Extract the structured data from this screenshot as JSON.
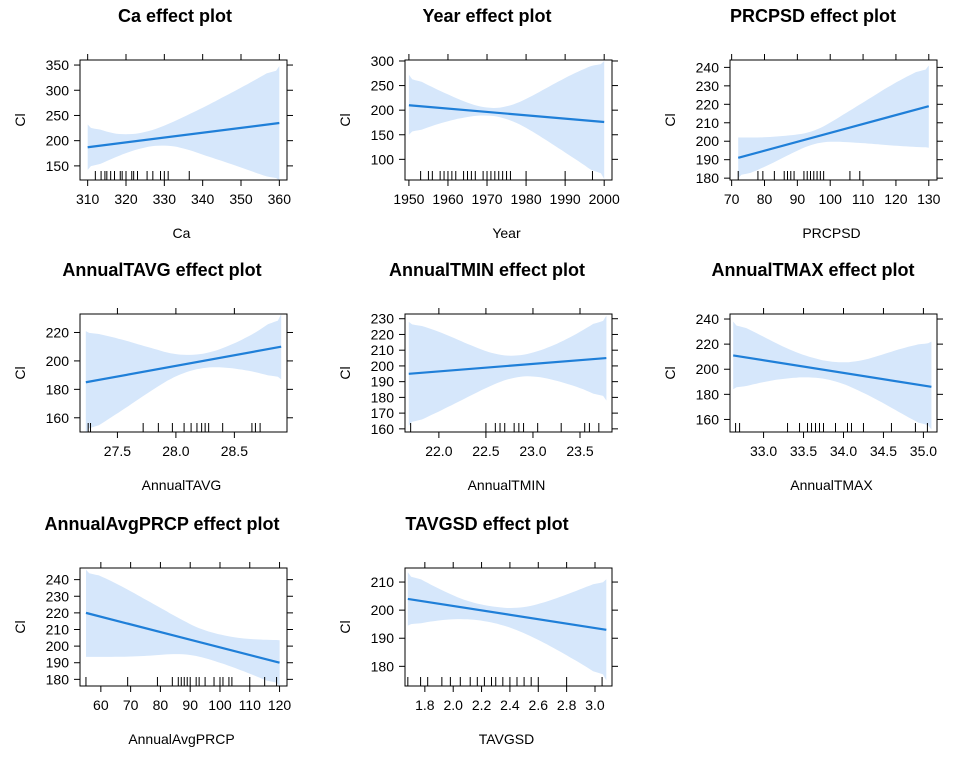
{
  "chart_data": [
    {
      "type": "line",
      "title": "Ca effect plot",
      "xlabel": "Ca",
      "ylabel": "Cl",
      "xlim": [
        308,
        362
      ],
      "ylim": [
        122,
        360
      ],
      "xticks": [
        310,
        320,
        330,
        340,
        350,
        360
      ],
      "yticks": [
        150,
        200,
        250,
        300,
        350
      ],
      "xtick_labels": [
        "310",
        "320",
        "330",
        "340",
        "350",
        "360"
      ],
      "ytick_labels": [
        "150",
        "200",
        "250",
        "300",
        "350"
      ],
      "fit": {
        "x": [
          310,
          360
        ],
        "y": [
          187,
          235
        ]
      },
      "band_upper": {
        "x": [
          310,
          315,
          320,
          325,
          330,
          335,
          340,
          345,
          350,
          355,
          360
        ],
        "y": [
          232,
          216,
          211,
          216,
          229,
          247,
          265,
          285,
          305,
          326,
          348
        ]
      },
      "band_lower": {
        "x": [
          310,
          315,
          320,
          325,
          330,
          335,
          340,
          345,
          350,
          355,
          360
        ],
        "y": [
          142,
          160,
          176,
          188,
          192,
          186,
          172,
          160,
          147,
          133,
          121
        ]
      },
      "rug": [
        312,
        313.5,
        314.5,
        315,
        316,
        317,
        318.5,
        319,
        320,
        321.5,
        322,
        323,
        325.5,
        327,
        329,
        330,
        331,
        336.5
      ]
    },
    {
      "type": "line",
      "title": "Year effect plot",
      "xlabel": "Year",
      "ylabel": "Cl",
      "xlim": [
        1949,
        2002
      ],
      "ylim": [
        58,
        302
      ],
      "xticks": [
        1950,
        1960,
        1970,
        1980,
        1990,
        2000
      ],
      "yticks": [
        100,
        150,
        200,
        250,
        300
      ],
      "xtick_labels": [
        "1950",
        "1960",
        "1970",
        "1980",
        "1990",
        "2000"
      ],
      "ytick_labels": [
        "100",
        "150",
        "200",
        "250",
        "300"
      ],
      "fit": {
        "x": [
          1950,
          2000
        ],
        "y": [
          210,
          176
        ]
      },
      "band_upper": {
        "x": [
          1950,
          1955,
          1960,
          1965,
          1970,
          1975,
          1980,
          1985,
          1990,
          1995,
          2000
        ],
        "y": [
          272,
          250,
          232,
          214,
          203,
          205,
          222,
          244,
          266,
          285,
          300
        ]
      },
      "band_lower": {
        "x": [
          1950,
          1955,
          1960,
          1965,
          1970,
          1975,
          1980,
          1985,
          1990,
          1995,
          2000
        ],
        "y": [
          150,
          166,
          178,
          187,
          191,
          184,
          165,
          140,
          114,
          88,
          60
        ]
      },
      "rug": [
        1953,
        1955,
        1956,
        1958,
        1959,
        1960,
        1961,
        1962,
        1964,
        1965,
        1966,
        1967,
        1969,
        1970,
        1971,
        1972,
        1973,
        1974,
        1975,
        1976,
        1980,
        1990,
        1997
      ]
    },
    {
      "type": "line",
      "title": "PRCPSD effect plot",
      "xlabel": "PRCPSD",
      "ylabel": "Cl",
      "xlim": [
        69.5,
        132.5
      ],
      "ylim": [
        179,
        244
      ],
      "xticks": [
        70,
        80,
        90,
        100,
        110,
        120,
        130
      ],
      "yticks": [
        180,
        190,
        200,
        210,
        220,
        230,
        240
      ],
      "xtick_labels": [
        "70",
        "80",
        "90",
        "100",
        "110",
        "120",
        "130"
      ],
      "ytick_labels": [
        "180",
        "190",
        "200",
        "210",
        "220",
        "230",
        "240"
      ],
      "fit": {
        "x": [
          72,
          130
        ],
        "y": [
          191,
          219
        ]
      },
      "band_upper": {
        "x": [
          72,
          80,
          90,
          95,
          100,
          110,
          120,
          130
        ],
        "y": [
          202,
          202,
          203.5,
          205,
          210,
          221,
          232,
          241
        ]
      },
      "band_lower": {
        "x": [
          72,
          80,
          90,
          95,
          100,
          110,
          120,
          130
        ],
        "y": [
          180,
          186,
          195,
          199,
          200,
          199,
          197.5,
          196.5
        ]
      },
      "rug": [
        72,
        78,
        79.5,
        83,
        86,
        87,
        88,
        89,
        92,
        93,
        94,
        95,
        96,
        97,
        98,
        106,
        109
      ]
    },
    {
      "type": "line",
      "title": "AnnualTAVG effect plot",
      "xlabel": "AnnualTAVG",
      "ylabel": "Cl",
      "xlim": [
        27.18,
        28.95
      ],
      "ylim": [
        150,
        233
      ],
      "xticks": [
        27.5,
        28.0,
        28.5
      ],
      "yticks": [
        160,
        180,
        200,
        220
      ],
      "xtick_labels": [
        "27.5",
        "28.0",
        "28.5"
      ],
      "ytick_labels": [
        "160",
        "180",
        "200",
        "220"
      ],
      "fit": {
        "x": [
          27.23,
          28.9
        ],
        "y": [
          185,
          210
        ]
      },
      "band_upper": {
        "x": [
          27.23,
          27.5,
          27.75,
          28.0,
          28.25,
          28.5,
          28.75,
          28.9
        ],
        "y": [
          221,
          216,
          210,
          204,
          204.5,
          212,
          223,
          233
        ]
      },
      "band_lower": {
        "x": [
          27.23,
          27.5,
          27.75,
          28.0,
          28.25,
          28.5,
          28.75,
          28.9
        ],
        "y": [
          149,
          163,
          177,
          190,
          196,
          195,
          191,
          187
        ]
      },
      "rug": [
        27.25,
        27.27,
        27.72,
        27.85,
        27.97,
        28.07,
        28.13,
        28.18,
        28.22,
        28.25,
        28.28,
        28.4,
        28.65,
        28.68,
        28.72
      ]
    },
    {
      "type": "line",
      "title": "AnnualTMIN effect plot",
      "xlabel": "AnnualTMIN",
      "ylabel": "Cl",
      "xlim": [
        21.64,
        23.84
      ],
      "ylim": [
        158,
        233
      ],
      "xticks": [
        22.0,
        22.5,
        23.0,
        23.5
      ],
      "yticks": [
        160,
        170,
        180,
        190,
        200,
        210,
        220,
        230
      ],
      "xtick_labels": [
        "22.0",
        "22.5",
        "23.0",
        "23.5"
      ],
      "ytick_labels": [
        "160",
        "170",
        "180",
        "190",
        "200",
        "210",
        "220",
        "230"
      ],
      "fit": {
        "x": [
          21.68,
          23.78
        ],
        "y": [
          195,
          205
        ]
      },
      "band_upper": {
        "x": [
          21.68,
          22.0,
          22.3,
          22.6,
          22.8,
          23.0,
          23.3,
          23.6,
          23.78
        ],
        "y": [
          228,
          222,
          214,
          207,
          206,
          208,
          215,
          225,
          232
        ]
      },
      "band_lower": {
        "x": [
          21.68,
          22.0,
          22.3,
          22.6,
          22.8,
          23.0,
          23.3,
          23.6,
          23.78
        ],
        "y": [
          162,
          171,
          180,
          189,
          193,
          194,
          190,
          184,
          178
        ]
      },
      "rug": [
        21.7,
        22.5,
        22.6,
        22.65,
        22.7,
        22.8,
        22.85,
        22.9,
        23.05,
        23.3,
        23.55,
        23.6,
        23.7
      ]
    },
    {
      "type": "line",
      "title": "AnnualTMAX effect plot",
      "xlabel": "AnnualTMAX",
      "ylabel": "Cl",
      "xlim": [
        32.58,
        35.17
      ],
      "ylim": [
        150,
        244
      ],
      "xticks": [
        33.0,
        33.5,
        34.0,
        34.5,
        35.0
      ],
      "yticks": [
        160,
        180,
        200,
        220,
        240
      ],
      "xtick_labels": [
        "33.0",
        "33.5",
        "34.0",
        "34.5",
        "35.0"
      ],
      "ytick_labels": [
        "160",
        "180",
        "200",
        "220",
        "240"
      ],
      "fit": {
        "x": [
          32.62,
          35.1
        ],
        "y": [
          211,
          186
        ]
      },
      "band_upper": {
        "x": [
          32.62,
          33.0,
          33.3,
          33.6,
          33.9,
          34.2,
          34.5,
          34.8,
          35.1
        ],
        "y": [
          238,
          226,
          216,
          209,
          205,
          206,
          212,
          218,
          222
        ]
      },
      "band_lower": {
        "x": [
          32.62,
          33.0,
          33.3,
          33.6,
          33.9,
          34.2,
          34.5,
          34.8,
          35.1
        ],
        "y": [
          184,
          190,
          193,
          194,
          191,
          183,
          173,
          162,
          152
        ]
      },
      "rug": [
        32.65,
        32.7,
        33.3,
        33.45,
        33.55,
        33.6,
        33.65,
        33.7,
        33.75,
        33.9,
        34.05,
        34.1,
        34.25,
        34.6,
        34.9,
        35.05
      ]
    },
    {
      "type": "line",
      "title": "AnnualAvgPRCP effect plot",
      "xlabel": "AnnualAvgPRCP",
      "ylabel": "Cl",
      "xlim": [
        53,
        122.5
      ],
      "ylim": [
        176,
        247
      ],
      "xticks": [
        60,
        70,
        80,
        90,
        100,
        110,
        120
      ],
      "yticks": [
        180,
        190,
        200,
        210,
        220,
        230,
        240
      ],
      "xtick_labels": [
        "60",
        "70",
        "80",
        "90",
        "100",
        "110",
        "120"
      ],
      "ytick_labels": [
        "180",
        "190",
        "200",
        "210",
        "220",
        "230",
        "240"
      ],
      "fit": {
        "x": [
          55,
          120
        ],
        "y": [
          220,
          190
        ]
      },
      "band_upper": {
        "x": [
          55,
          65,
          75,
          85,
          90,
          95,
          105,
          112,
          120
        ],
        "y": [
          246,
          238,
          228,
          218,
          213,
          209,
          205,
          204,
          203.5
        ]
      },
      "band_lower": {
        "x": [
          55,
          65,
          75,
          85,
          90,
          95,
          105,
          112,
          120
        ],
        "y": [
          193.5,
          193.5,
          194,
          195.5,
          195,
          193,
          187,
          182,
          176
        ]
      },
      "rug": [
        55,
        69,
        79,
        84,
        86,
        87,
        88,
        89,
        90,
        92,
        93,
        95,
        98,
        100,
        101,
        103,
        104,
        110,
        115,
        119
      ]
    },
    {
      "type": "line",
      "title": "TAVGSD effect plot",
      "xlabel": "TAVGSD",
      "ylabel": "Cl",
      "xlim": [
        1.66,
        3.12
      ],
      "ylim": [
        173,
        215
      ],
      "xticks": [
        1.8,
        2.0,
        2.2,
        2.4,
        2.6,
        2.8,
        3.0
      ],
      "yticks": [
        180,
        190,
        200,
        210
      ],
      "xtick_labels": [
        "1.8",
        "2.0",
        "2.2",
        "2.4",
        "2.6",
        "2.8",
        "3.0"
      ],
      "ytick_labels": [
        "180",
        "190",
        "200",
        "210"
      ],
      "fit": {
        "x": [
          1.68,
          3.08
        ],
        "y": [
          204,
          193
        ]
      },
      "band_upper": {
        "x": [
          1.68,
          1.9,
          2.1,
          2.3,
          2.45,
          2.6,
          2.8,
          3.0,
          3.08
        ],
        "y": [
          213.5,
          207.5,
          203,
          201,
          200.5,
          202,
          205.5,
          209.5,
          211
        ]
      },
      "band_lower": {
        "x": [
          1.68,
          1.9,
          2.1,
          2.3,
          2.45,
          2.6,
          2.8,
          3.0,
          3.08
        ],
        "y": [
          194.5,
          196.5,
          197,
          195.5,
          193,
          189.5,
          184,
          178,
          175
        ]
      },
      "rug": [
        1.68,
        1.77,
        1.82,
        1.92,
        1.98,
        2.05,
        2.12,
        2.17,
        2.22,
        2.27,
        2.3,
        2.35,
        2.4,
        2.45,
        2.5,
        2.55,
        2.6,
        2.8,
        3.05
      ]
    }
  ]
}
